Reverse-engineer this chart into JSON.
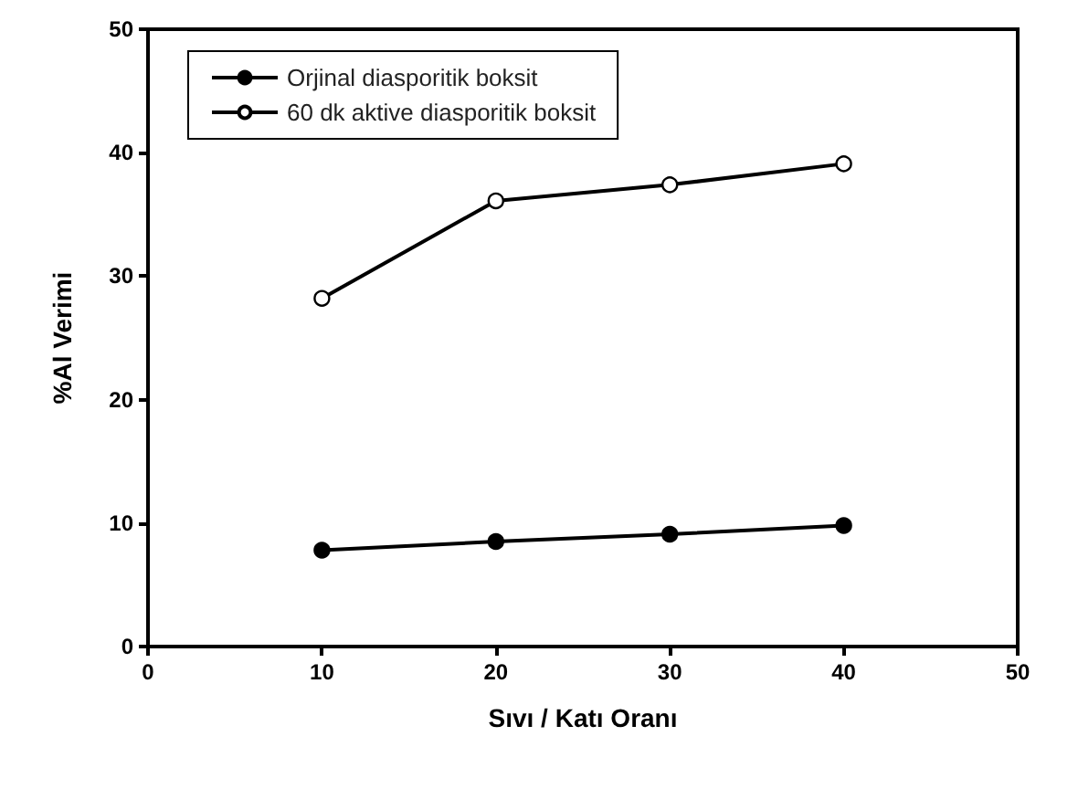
{
  "chart_data": {
    "type": "line",
    "xlabel": "Sıvı / Katı Oranı",
    "ylabel": "%Al Verimi",
    "x": [
      10,
      20,
      30,
      40
    ],
    "series": [
      {
        "name": "Orjinal diasporitik boksit",
        "color": "#000000",
        "values": [
          7.8,
          8.5,
          9.1,
          9.8
        ]
      },
      {
        "name": "60 dk aktive diasporitik boksit",
        "color": "#000000",
        "values": [
          28.2,
          36.1,
          37.4,
          39.1
        ]
      }
    ],
    "xlim": [
      0,
      50
    ],
    "xticks": [
      0,
      10,
      20,
      30,
      40,
      50
    ],
    "ylim": [
      0,
      50
    ],
    "yticks": [
      0,
      10,
      20,
      30,
      40,
      50
    ],
    "grid": false,
    "legend": "top left",
    "marker": "circle",
    "line_style": "solid"
  }
}
